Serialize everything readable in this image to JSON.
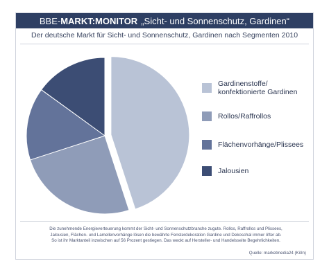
{
  "header": {
    "brand_light": "BBE-",
    "brand_bold": "MARKT:MONITOR",
    "topic": "„Sicht- und Sonnenschutz, Gardinen“"
  },
  "chart_data": {
    "type": "pie",
    "title": "",
    "subtitle": "Der deutsche Markt für Sicht- und Sonnenschutz, Gardinen nach Segmenten 2010",
    "slices": [
      {
        "label": "Gardinenstoffe/ konfektionierte Gardinen",
        "value": 45,
        "color": "#b9c3d6",
        "exploded": true
      },
      {
        "label": "Rollos/Raffrollos",
        "value": 25,
        "color": "#8f9cb8"
      },
      {
        "label": "Flächenvorhänge/Plissees",
        "value": 15,
        "color": "#63739a"
      },
      {
        "label": "Jalousien",
        "value": 15,
        "color": "#3c4d74"
      }
    ],
    "legend_position": "right"
  },
  "footer": {
    "note_lines": [
      "Die zunehmende Energieverteuerung kommt der Sicht- und Sonnenschutzbranche zugute. Rollos, Raffrollos und Plissees,",
      "Jalousien, Flächen- und Lamellenvorhänge lösen die bewährte Fensterdekoration Gardine und Dekoschal immer öfter ab.",
      "So ist ihr Marktanteil inzwischen auf 56 Prozent gestiegen. Das weckt auf Hersteller- und Handelsseite Begehrlichkeiten."
    ],
    "source": "Quelle: marketmedia24 (Köln)"
  }
}
